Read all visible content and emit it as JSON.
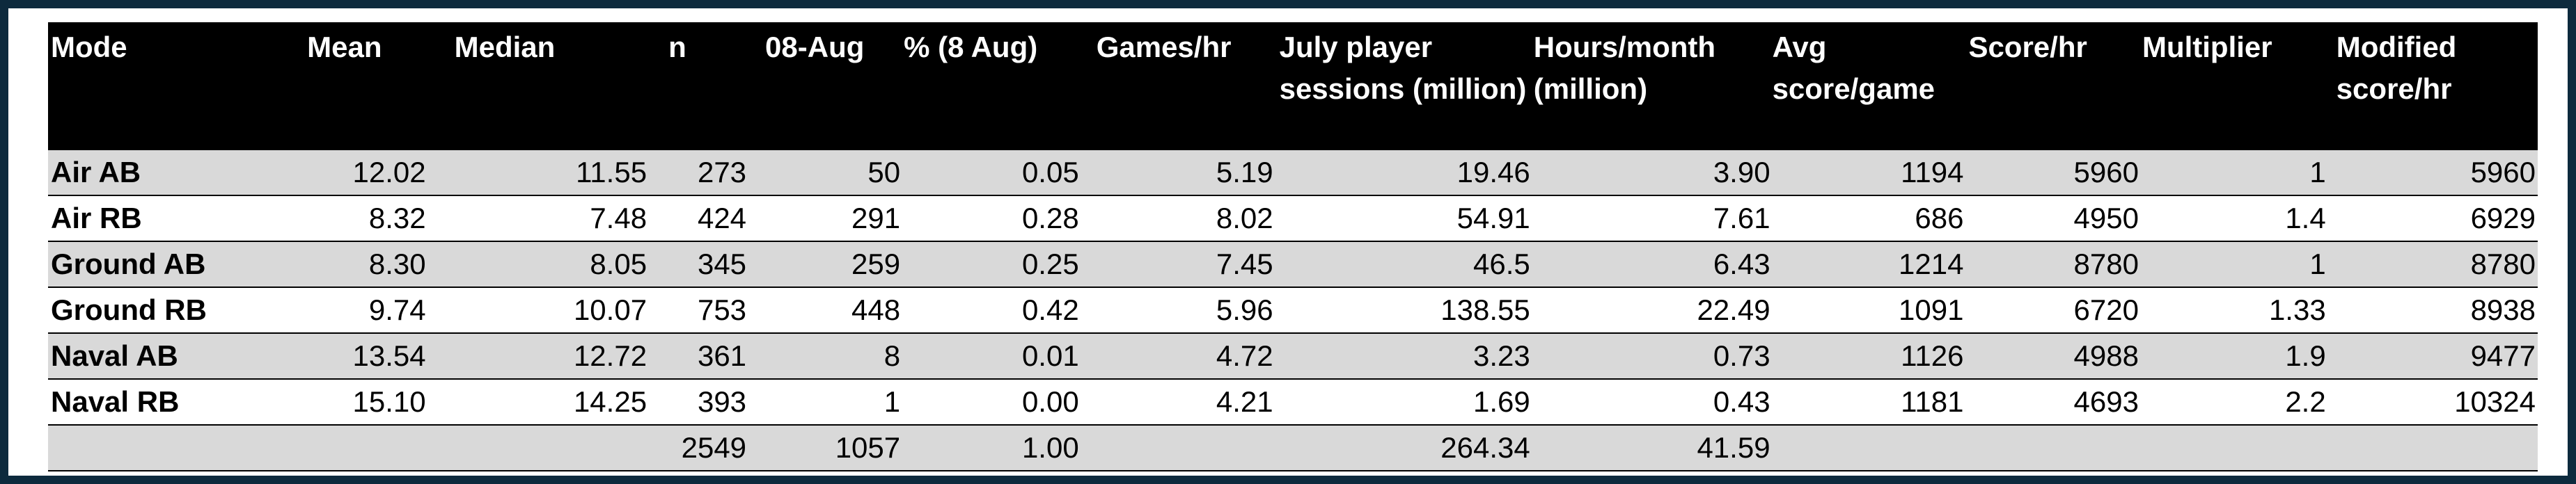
{
  "headers": [
    "Mode",
    "Mean",
    "Median",
    "n",
    "08-Aug",
    "% (8 Aug)",
    "Games/hr",
    "July player sessions (million)",
    "Hours/month (million)",
    "Avg score/game",
    "Score/hr",
    "Multiplier",
    "Modified score/hr"
  ],
  "rows": [
    [
      "Air AB",
      "12.02",
      "11.55",
      "273",
      "50",
      "0.05",
      "5.19",
      "19.46",
      "3.90",
      "1194",
      "5960",
      "1",
      "5960"
    ],
    [
      "Air RB",
      "8.32",
      "7.48",
      "424",
      "291",
      "0.28",
      "8.02",
      "54.91",
      "7.61",
      "686",
      "4950",
      "1.4",
      "6929"
    ],
    [
      "Ground AB",
      "8.30",
      "8.05",
      "345",
      "259",
      "0.25",
      "7.45",
      "46.5",
      "6.43",
      "1214",
      "8780",
      "1",
      "8780"
    ],
    [
      "Ground RB",
      "9.74",
      "10.07",
      "753",
      "448",
      "0.42",
      "5.96",
      "138.55",
      "22.49",
      "1091",
      "6720",
      "1.33",
      "8938"
    ],
    [
      "Naval AB",
      "13.54",
      "12.72",
      "361",
      "8",
      "0.01",
      "4.72",
      "3.23",
      "0.73",
      "1126",
      "4988",
      "1.9",
      "9477"
    ],
    [
      "Naval RB",
      "15.10",
      "14.25",
      "393",
      "1",
      "0.00",
      "4.21",
      "1.69",
      "0.43",
      "1181",
      "4693",
      "2.2",
      "10324"
    ],
    [
      "",
      "",
      "",
      "2549",
      "1057",
      "1.00",
      "",
      "264.34",
      "41.59",
      "",
      "",
      "",
      ""
    ]
  ]
}
